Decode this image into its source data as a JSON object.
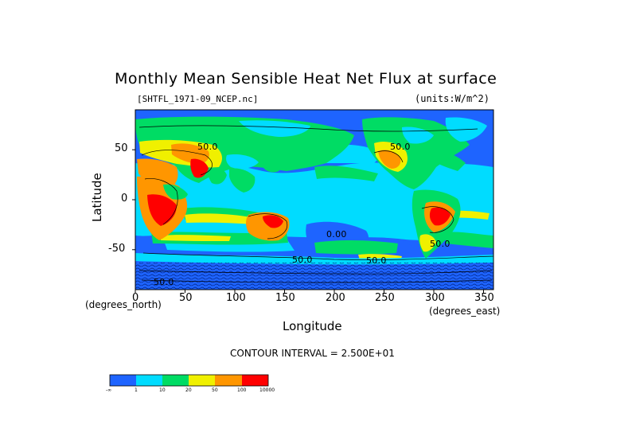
{
  "chart_data": {
    "type": "heatmap",
    "title": "Monthly Mean Sensible Heat Net Flux at surface",
    "subtitle": "[SHTFL_1971-09_NCEP.nc]",
    "units_label": "(units:W/m^2)",
    "xlabel": "Longitude",
    "ylabel": "Latitude",
    "x_unit_label": "(degrees_east)",
    "y_unit_label": "(degrees_north)",
    "xlim": [
      0,
      360
    ],
    "ylim": [
      -90,
      90
    ],
    "x_ticks": [
      0,
      50,
      100,
      150,
      200,
      250,
      300,
      350
    ],
    "y_ticks": [
      50,
      0,
      -50
    ],
    "contour_interval_text": "CONTOUR INTERVAL = 2.500E+01",
    "contour_labels": [
      "50.0",
      "0.00",
      "50.0",
      "50.0",
      "50.0",
      "50.0",
      "50.0"
    ],
    "legend": {
      "ticks": [
        "-∞",
        "1",
        "10",
        "20",
        "50",
        "100",
        "10000"
      ],
      "colors": [
        "#1e64ff",
        "#00dcff",
        "#00dc64",
        "#f0f000",
        "#ff9600",
        "#ff0000"
      ]
    },
    "colors": {
      "ocean_dark": "#1e64ff",
      "ocean_light": "#00dcff",
      "green": "#00dc64",
      "yellow": "#f0f000",
      "orange": "#ff9600",
      "red": "#ff0000"
    }
  }
}
